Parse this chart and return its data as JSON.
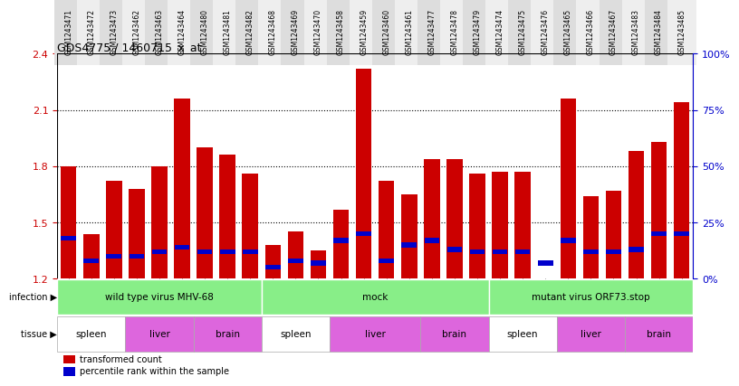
{
  "title": "GDS4775 / 1460715_x_at",
  "samples": [
    "GSM1243471",
    "GSM1243472",
    "GSM1243473",
    "GSM1243462",
    "GSM1243463",
    "GSM1243464",
    "GSM1243480",
    "GSM1243481",
    "GSM1243482",
    "GSM1243468",
    "GSM1243469",
    "GSM1243470",
    "GSM1243458",
    "GSM1243459",
    "GSM1243460",
    "GSM1243461",
    "GSM1243477",
    "GSM1243478",
    "GSM1243479",
    "GSM1243474",
    "GSM1243475",
    "GSM1243476",
    "GSM1243465",
    "GSM1243466",
    "GSM1243467",
    "GSM1243483",
    "GSM1243484",
    "GSM1243485"
  ],
  "transformed_count": [
    1.8,
    1.44,
    1.72,
    1.68,
    1.8,
    2.16,
    1.9,
    1.86,
    1.76,
    1.38,
    1.45,
    1.35,
    1.57,
    2.32,
    1.72,
    1.65,
    1.84,
    1.84,
    1.76,
    1.77,
    1.77,
    1.2,
    2.16,
    1.64,
    1.67,
    1.88,
    1.93,
    2.14
  ],
  "percentile_rank": [
    18,
    8,
    10,
    10,
    12,
    14,
    12,
    12,
    12,
    5,
    8,
    7,
    17,
    20,
    8,
    15,
    17,
    13,
    12,
    12,
    12,
    7,
    17,
    12,
    12,
    13,
    20,
    20
  ],
  "ymin": 1.2,
  "ymax": 2.4,
  "yticks": [
    1.2,
    1.5,
    1.8,
    2.1,
    2.4
  ],
  "y2ticks": [
    0,
    25,
    50,
    75,
    100
  ],
  "infection_groups": [
    {
      "label": "wild type virus MHV-68",
      "start": 0,
      "end": 9
    },
    {
      "label": "mock",
      "start": 9,
      "end": 19
    },
    {
      "label": "mutant virus ORF73.stop",
      "start": 19,
      "end": 28
    }
  ],
  "tissue_groups": [
    {
      "label": "spleen",
      "start": 0,
      "end": 3,
      "color": "#ffffff"
    },
    {
      "label": "liver",
      "start": 3,
      "end": 6,
      "color": "#dd66dd"
    },
    {
      "label": "brain",
      "start": 6,
      "end": 9,
      "color": "#dd66dd"
    },
    {
      "label": "spleen",
      "start": 9,
      "end": 12,
      "color": "#ffffff"
    },
    {
      "label": "liver",
      "start": 12,
      "end": 16,
      "color": "#dd66dd"
    },
    {
      "label": "brain",
      "start": 16,
      "end": 19,
      "color": "#dd66dd"
    },
    {
      "label": "spleen",
      "start": 19,
      "end": 22,
      "color": "#ffffff"
    },
    {
      "label": "liver",
      "start": 22,
      "end": 25,
      "color": "#dd66dd"
    },
    {
      "label": "brain",
      "start": 25,
      "end": 28,
      "color": "#dd66dd"
    }
  ],
  "bar_color": "#cc0000",
  "percentile_color": "#0000cc",
  "infection_color": "#88ee88",
  "bg_color": "#ffffff",
  "label_color_left": "#cc0000",
  "label_color_right": "#0000cc",
  "tick_bg_colors": [
    "#dddddd",
    "#eeeeee"
  ]
}
